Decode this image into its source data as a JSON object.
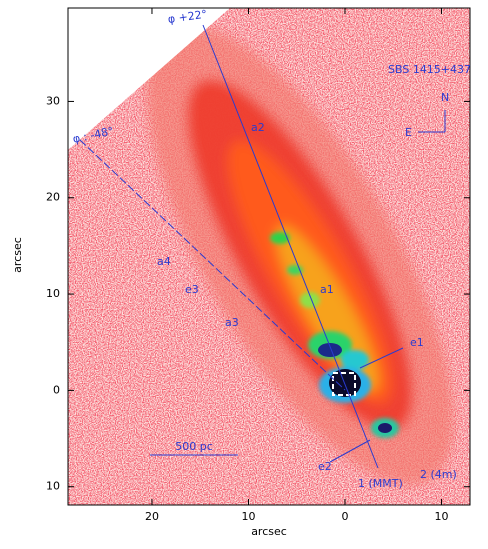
{
  "chart_data": {
    "type": "image",
    "x_label": "arcsec",
    "y_label": "arcsec",
    "xlim": [
      28.7,
      -12.95
    ],
    "ylim": [
      -11.9,
      39.7
    ],
    "xticks": [
      20,
      10,
      0,
      {
        "value": -10,
        "label": "10"
      }
    ],
    "yticks": [
      30,
      20,
      10,
      0,
      {
        "value": -10,
        "label": "10"
      }
    ],
    "object_name": "SBS 1415+437",
    "compass": {
      "north": "N",
      "east": "E"
    },
    "slits": [
      "φ +22°",
      "φ : -48°"
    ],
    "regions": [
      "a2",
      "a1",
      "a4",
      "e3",
      "a3",
      "e1",
      "e2"
    ],
    "spectra": [
      "1 (MMT)",
      "2 (4m)"
    ],
    "scale_bar": "500 pc"
  }
}
